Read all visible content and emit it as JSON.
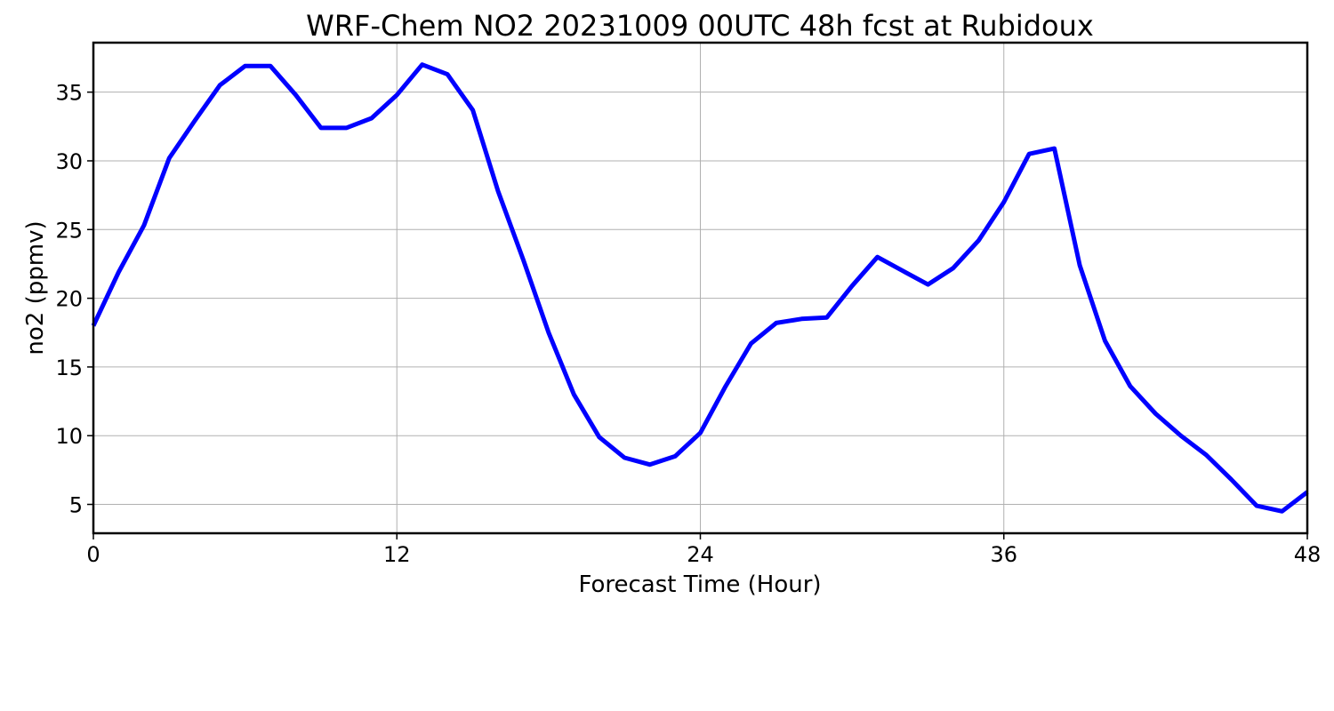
{
  "chart_data": {
    "type": "line",
    "title": "WRF-Chem NO2  20231009 00UTC 48h fcst at Rubidoux",
    "xlabel": "Forecast Time (Hour)",
    "ylabel": "no2  (ppmv)",
    "xlim": [
      0,
      48
    ],
    "ylim": [
      2.9,
      38.6
    ],
    "xticks": [
      0,
      12,
      24,
      36,
      48
    ],
    "yticks": [
      5,
      10,
      15,
      20,
      25,
      30,
      35
    ],
    "grid": true,
    "line_color": "#0000ff",
    "series": [
      {
        "x": [
          0,
          1,
          2,
          3,
          4,
          5,
          6,
          7,
          8,
          9,
          10,
          11,
          12,
          13,
          14,
          15,
          16,
          17,
          18,
          19,
          20,
          21,
          22,
          23,
          24,
          25,
          26,
          27,
          28,
          29,
          30,
          31,
          32,
          33,
          34,
          35,
          36,
          37,
          38,
          39,
          40,
          41,
          42,
          43,
          44,
          45,
          46,
          47,
          48
        ],
        "values": [
          18.0,
          21.9,
          25.3,
          30.2,
          32.9,
          35.5,
          36.9,
          36.9,
          34.8,
          32.4,
          32.4,
          33.1,
          34.8,
          37.0,
          36.3,
          33.7,
          27.8,
          22.8,
          17.5,
          13.0,
          9.9,
          8.4,
          7.9,
          8.5,
          10.2,
          13.6,
          16.7,
          18.2,
          18.5,
          18.6,
          20.9,
          23.0,
          22.0,
          21.0,
          22.2,
          24.2,
          27.0,
          30.5,
          30.9,
          22.4,
          16.9,
          13.6,
          11.6,
          10.0,
          8.6,
          6.8,
          4.9,
          4.5,
          5.9
        ]
      }
    ]
  }
}
